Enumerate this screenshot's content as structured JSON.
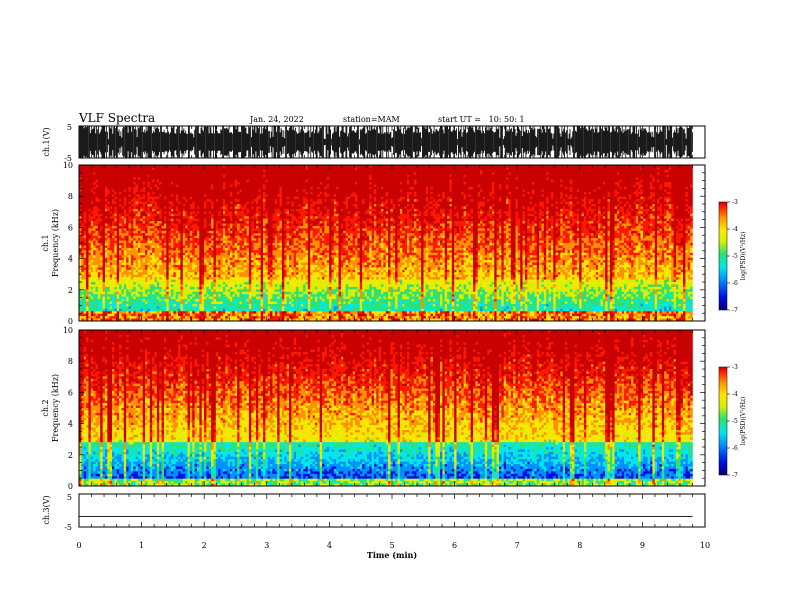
{
  "header": {
    "title": "VLF Spectra",
    "date": "Jan. 24, 2022",
    "station": "station=MAM",
    "start_ut": "start UT =   10: 50: 1"
  },
  "chart_data": [
    {
      "type": "line",
      "panel": "waveform-ch1",
      "ylabel": "ch.1(V)",
      "ytick_labels": [
        "5",
        "-5"
      ],
      "ylim": [
        -5,
        5
      ],
      "xlim": [
        0,
        10
      ],
      "trace_end_min": 9.8,
      "description_color": "#000000"
    },
    {
      "type": "heatmap",
      "panel": "spectrogram-ch1",
      "ylabel": [
        "ch.1",
        "Frequency (kHz)"
      ],
      "ytick_labels": [
        "0",
        "2",
        "4",
        "6",
        "8",
        "10"
      ],
      "ylim": [
        0,
        10
      ],
      "xlim": [
        0,
        10
      ],
      "data_end_min": 9.8,
      "colorbar": {
        "label": "log(PSD)(V²/Hz)",
        "range": [
          -7,
          -3
        ],
        "tick_labels": [
          "-3",
          "-4",
          "-5",
          "-6",
          "-7"
        ]
      }
    },
    {
      "type": "heatmap",
      "panel": "spectrogram-ch2",
      "ylabel": [
        "ch.2",
        "Frequency (kHz)"
      ],
      "ytick_labels": [
        "0",
        "2",
        "4",
        "6",
        "8",
        "10"
      ],
      "ylim": [
        0,
        10
      ],
      "xlim": [
        0,
        10
      ],
      "data_end_min": 9.8,
      "colorbar": {
        "label": "log(PSD)(V²/Hz)",
        "range": [
          -7,
          -3
        ],
        "tick_labels": [
          "-3",
          "-4",
          "-5",
          "-6",
          "-7"
        ]
      }
    },
    {
      "type": "line",
      "panel": "waveform-ch3",
      "ylabel": "ch.3(V)",
      "ytick_labels": [
        "5",
        "-5"
      ],
      "ylim": [
        -5,
        5
      ],
      "xlim": [
        0,
        10
      ],
      "series": [
        {
          "x": [
            0,
            9.8
          ],
          "y": [
            -1.8,
            -1.8
          ]
        }
      ]
    }
  ],
  "xaxis": {
    "label": "Time (min)",
    "tick_labels": [
      "0",
      "1",
      "2",
      "3",
      "4",
      "5",
      "6",
      "7",
      "8",
      "9",
      "10"
    ]
  },
  "colormap": [
    "#00007a",
    "#0010e0",
    "#0090ff",
    "#00e8e8",
    "#30e070",
    "#d8f000",
    "#ffe600",
    "#ff9000",
    "#ff1800",
    "#c80000"
  ]
}
